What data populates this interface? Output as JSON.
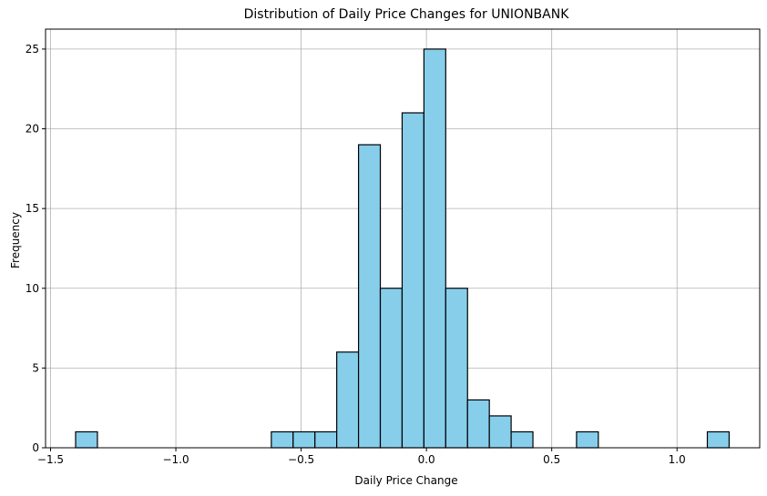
{
  "chart_data": {
    "type": "bar",
    "title": "Distribution of Daily Price Changes for UNIONBANK",
    "xlabel": "Daily Price Change",
    "ylabel": "Frequency",
    "xlim": [
      -1.52,
      1.33
    ],
    "ylim": [
      0,
      26.25
    ],
    "grid": true,
    "bar_color": "#87ceeb",
    "edge_color": "#000000",
    "x_ticks": [
      {
        "value": -1.5,
        "label": "−1.5"
      },
      {
        "value": -1.0,
        "label": "−1.0"
      },
      {
        "value": -0.5,
        "label": "−0.5"
      },
      {
        "value": 0.0,
        "label": "0.0"
      },
      {
        "value": 0.5,
        "label": "0.5"
      },
      {
        "value": 1.0,
        "label": "1.0"
      }
    ],
    "y_ticks": [
      {
        "value": 0,
        "label": "0"
      },
      {
        "value": 5,
        "label": "5"
      },
      {
        "value": 10,
        "label": "10"
      },
      {
        "value": 15,
        "label": "15"
      },
      {
        "value": 20,
        "label": "20"
      },
      {
        "value": 25,
        "label": "25"
      }
    ],
    "bins": [
      {
        "start": -1.4,
        "end": -1.313,
        "count": 1
      },
      {
        "start": -0.619,
        "end": -0.532,
        "count": 1
      },
      {
        "start": -0.532,
        "end": -0.445,
        "count": 1
      },
      {
        "start": -0.445,
        "end": -0.358,
        "count": 1
      },
      {
        "start": -0.358,
        "end": -0.271,
        "count": 6
      },
      {
        "start": -0.271,
        "end": -0.184,
        "count": 19
      },
      {
        "start": -0.184,
        "end": -0.097,
        "count": 10
      },
      {
        "start": -0.097,
        "end": -0.01,
        "count": 21
      },
      {
        "start": -0.01,
        "end": 0.077,
        "count": 25
      },
      {
        "start": 0.077,
        "end": 0.164,
        "count": 10
      },
      {
        "start": 0.164,
        "end": 0.251,
        "count": 3
      },
      {
        "start": 0.251,
        "end": 0.338,
        "count": 2
      },
      {
        "start": 0.338,
        "end": 0.425,
        "count": 1
      },
      {
        "start": 0.599,
        "end": 0.686,
        "count": 1
      },
      {
        "start": 1.121,
        "end": 1.208,
        "count": 1
      }
    ]
  }
}
